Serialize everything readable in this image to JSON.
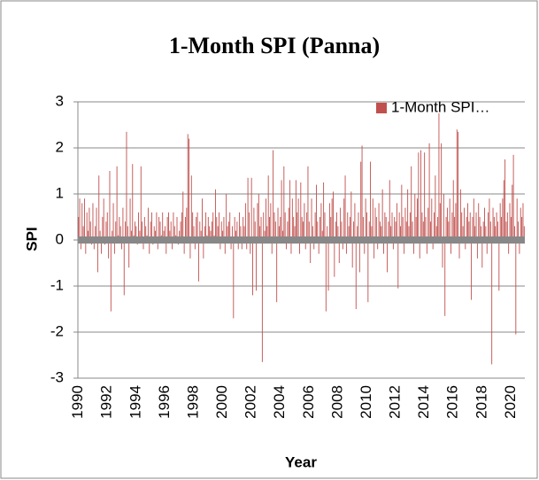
{
  "chart_data": {
    "type": "bar",
    "title": "1-Month SPI (Panna)",
    "x_label": "Year",
    "y_label": "SPI",
    "categories": [
      "1990",
      null,
      null,
      null,
      null,
      null,
      null,
      null,
      null,
      null,
      null,
      null,
      null,
      null,
      null,
      null,
      null,
      null,
      null,
      null,
      null,
      null,
      null,
      null,
      "1992",
      null,
      null,
      null,
      null,
      null,
      null,
      null,
      null,
      null,
      null,
      null,
      null,
      null,
      null,
      null,
      null,
      null,
      null,
      null,
      null,
      null,
      null,
      null,
      "1994",
      null,
      null,
      null,
      null,
      null,
      null,
      null,
      null,
      null,
      null,
      null,
      null,
      null,
      null,
      null,
      null,
      null,
      null,
      null,
      null,
      null,
      null,
      null,
      "1996",
      null,
      null,
      null,
      null,
      null,
      null,
      null,
      null,
      null,
      null,
      null,
      null,
      null,
      null,
      null,
      null,
      null,
      null,
      null,
      null,
      null,
      null,
      null,
      "1998",
      null,
      null,
      null,
      null,
      null,
      null,
      null,
      null,
      null,
      null,
      null,
      null,
      null,
      null,
      null,
      null,
      null,
      null,
      null,
      null,
      null,
      null,
      null,
      "2000",
      null,
      null,
      null,
      null,
      null,
      null,
      null,
      null,
      null,
      null,
      null,
      null,
      null,
      null,
      null,
      null,
      null,
      null,
      null,
      null,
      null,
      null,
      null,
      "2002",
      null,
      null,
      null,
      null,
      null,
      null,
      null,
      null,
      null,
      null,
      null,
      null,
      null,
      null,
      null,
      null,
      null,
      null,
      null,
      null,
      null,
      null,
      null,
      "2004",
      null,
      null,
      null,
      null,
      null,
      null,
      null,
      null,
      null,
      null,
      null,
      null,
      null,
      null,
      null,
      null,
      null,
      null,
      null,
      null,
      null,
      null,
      null,
      "2006",
      null,
      null,
      null,
      null,
      null,
      null,
      null,
      null,
      null,
      null,
      null,
      null,
      null,
      null,
      null,
      null,
      null,
      null,
      null,
      null,
      null,
      null,
      null,
      "2008",
      null,
      null,
      null,
      null,
      null,
      null,
      null,
      null,
      null,
      null,
      null,
      null,
      null,
      null,
      null,
      null,
      null,
      null,
      null,
      null,
      null,
      null,
      null,
      "2010",
      null,
      null,
      null,
      null,
      null,
      null,
      null,
      null,
      null,
      null,
      null,
      null,
      null,
      null,
      null,
      null,
      null,
      null,
      null,
      null,
      null,
      null,
      null,
      "2012",
      null,
      null,
      null,
      null,
      null,
      null,
      null,
      null,
      null,
      null,
      null,
      null,
      null,
      null,
      null,
      null,
      null,
      null,
      null,
      null,
      null,
      null,
      null,
      "2014",
      null,
      null,
      null,
      null,
      null,
      null,
      null,
      null,
      null,
      null,
      null,
      null,
      null,
      null,
      null,
      null,
      null,
      null,
      null,
      null,
      null,
      null,
      null,
      "2016",
      null,
      null,
      null,
      null,
      null,
      null,
      null,
      null,
      null,
      null,
      null,
      null,
      null,
      null,
      null,
      null,
      null,
      null,
      null,
      null,
      null,
      null,
      null,
      "2018",
      null,
      null,
      null,
      null,
      null,
      null,
      null,
      null,
      null,
      null,
      null,
      null,
      null,
      null,
      null,
      null,
      null,
      null,
      null,
      null,
      null,
      null,
      null,
      "2020",
      null,
      null,
      null,
      null,
      null,
      null,
      null,
      null,
      null,
      null,
      null
    ],
    "series": [
      {
        "name": "1-Month SPI…",
        "color": "#c0504d",
        "values": [
          0.5,
          0.9,
          -0.2,
          0.8,
          0.3,
          0.9,
          -0.3,
          0.6,
          0.2,
          0.7,
          0.4,
          -0.1,
          0.8,
          -0.2,
          0.3,
          0.7,
          -0.7,
          1.4,
          0.2,
          -0.3,
          0.5,
          0.9,
          -0.1,
          0.4,
          0.6,
          -0.4,
          1.5,
          -1.55,
          0.2,
          0.8,
          -0.3,
          0.4,
          1.6,
          0.1,
          0.5,
          0.3,
          -0.2,
          0.7,
          -1.2,
          0.4,
          2.35,
          0.3,
          -0.6,
          0.9,
          0.2,
          1.65,
          0.1,
          0.4,
          0.3,
          -0.1,
          0.6,
          0.2,
          1.6,
          0.4,
          -0.2,
          0.5,
          0.3,
          0.1,
          0.7,
          -0.3,
          0.4,
          0.6,
          -0.1,
          0.3,
          0.2,
          0.6,
          -0.2,
          0.5,
          0.4,
          0.1,
          0.6,
          0.2,
          0.3,
          -0.3,
          0.5,
          0.6,
          0.2,
          0.4,
          -0.2,
          0.6,
          0.3,
          0.1,
          0.5,
          -0.1,
          0.2,
          0.4,
          0.6,
          1.05,
          -0.3,
          0.5,
          0.7,
          2.3,
          2.2,
          -0.4,
          1.4,
          0.6,
          0.3,
          -0.2,
          0.5,
          0.6,
          -0.9,
          0.4,
          0.2,
          0.9,
          -0.4,
          0.3,
          0.6,
          0.1,
          0.5,
          0.3,
          0.2,
          0.4,
          0.6,
          0.1,
          1.1,
          0.5,
          0.3,
          0.6,
          -0.2,
          0.4,
          0.2,
          0.5,
          -0.3,
          1.0,
          0.3,
          0.4,
          0.6,
          -0.2,
          0.3,
          -1.7,
          0.5,
          0.2,
          0.4,
          -0.2,
          0.6,
          0.3,
          -0.2,
          0.5,
          0.3,
          0.8,
          -0.2,
          1.35,
          0.6,
          -0.3,
          1.35,
          -1.2,
          0.7,
          0.4,
          -1.1,
          0.8,
          1.0,
          0.3,
          0.5,
          -2.65,
          0.6,
          0.2,
          0.9,
          0.3,
          1.4,
          0.5,
          0.8,
          -0.3,
          1.95,
          0.6,
          0.4,
          -1.35,
          0.7,
          0.3,
          0.5,
          1.3,
          0.2,
          1.6,
          0.6,
          -0.2,
          0.4,
          0.7,
          1.3,
          -0.3,
          0.9,
          0.5,
          0.3,
          1.3,
          0.6,
          0.9,
          -0.3,
          1.25,
          0.5,
          0.4,
          0.8,
          -0.2,
          0.6,
          1.6,
          0.4,
          -0.5,
          0.9,
          0.3,
          -0.2,
          0.6,
          1.2,
          0.4,
          -0.3,
          0.5,
          0.8,
          0.2,
          1.25,
          0.6,
          -1.55,
          0.3,
          -1.1,
          0.8,
          0.5,
          0.9,
          1.05,
          -0.8,
          0.4,
          0.6,
          0.3,
          -0.5,
          0.7,
          0.4,
          -0.2,
          0.9,
          1.4,
          -0.3,
          0.6,
          0.3,
          0.5,
          1.05,
          -0.6,
          0.4,
          0.8,
          -1.5,
          0.3,
          0.6,
          -0.7,
          1.7,
          2.05,
          0.5,
          -0.3,
          0.9,
          0.6,
          -1.35,
          0.4,
          1.7,
          0.3,
          0.9,
          -0.4,
          0.7,
          0.5,
          -0.2,
          0.8,
          0.4,
          0.3,
          1.1,
          -0.3,
          0.6,
          0.5,
          -0.7,
          0.4,
          1.3,
          0.3,
          0.6,
          -0.2,
          0.5,
          0.4,
          0.8,
          -1.05,
          0.6,
          0.3,
          1.2,
          0.5,
          -0.3,
          0.7,
          0.4,
          1.1,
          0.3,
          0.6,
          1.6,
          0.4,
          -0.3,
          1.0,
          0.5,
          0.9,
          1.9,
          -0.4,
          1.95,
          0.6,
          0.4,
          1.9,
          0.5,
          -0.3,
          0.7,
          2.1,
          0.4,
          0.9,
          -0.2,
          0.6,
          1.4,
          0.3,
          0.5,
          2.75,
          0.8,
          2.1,
          -0.6,
          1.0,
          -1.65,
          0.5,
          0.7,
          0.4,
          0.9,
          -0.3,
          0.6,
          1.3,
          0.5,
          0.8,
          2.4,
          2.35,
          -0.4,
          1.1,
          0.6,
          0.3,
          0.7,
          -0.2,
          0.5,
          0.8,
          0.4,
          0.6,
          -1.3,
          0.5,
          0.9,
          0.3,
          0.6,
          -0.4,
          0.8,
          0.5,
          0.3,
          -0.6,
          0.4,
          0.7,
          0.3,
          -0.3,
          0.6,
          0.9,
          0.4,
          -2.7,
          0.7,
          0.5,
          0.3,
          0.6,
          0.4,
          -1.1,
          0.8,
          0.5,
          0.9,
          1.3,
          1.75,
          0.4,
          0.6,
          -0.3,
          0.8,
          0.5,
          1.2,
          1.85,
          0.3,
          -2.05,
          0.9,
          0.4,
          -0.3,
          0.7,
          0.5,
          0.8,
          0.3
        ]
      }
    ],
    "ylim": [
      -3,
      3
    ],
    "yticks": [
      -3,
      -2,
      -1,
      0,
      1,
      2,
      3
    ],
    "grid": true,
    "legend": "top-right"
  }
}
